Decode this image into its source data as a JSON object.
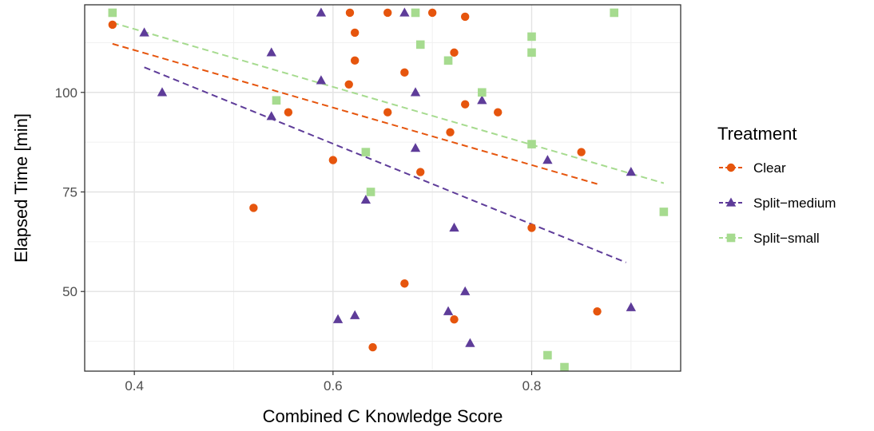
{
  "chart_data": {
    "type": "scatter",
    "xlabel": "Combined C Knowledge Score",
    "ylabel": "Elapsed Time [min]",
    "xlim": [
      0.35,
      0.95
    ],
    "ylim": [
      30,
      122
    ],
    "x_ticks": [
      0.4,
      0.6,
      0.8
    ],
    "x_tick_labels": [
      "0.4",
      "0.6",
      "0.8"
    ],
    "y_ticks": [
      50,
      75,
      100
    ],
    "y_tick_labels": [
      "50",
      "75",
      "100"
    ],
    "grid": true,
    "legend": {
      "title": "Treatment",
      "position": "right"
    },
    "series": [
      {
        "name": "Clear",
        "color": "#E6550D",
        "marker": "circle",
        "points": [
          [
            0.378,
            117
          ],
          [
            0.52,
            71
          ],
          [
            0.555,
            95
          ],
          [
            0.6,
            83
          ],
          [
            0.616,
            102
          ],
          [
            0.617,
            120
          ],
          [
            0.622,
            115
          ],
          [
            0.622,
            108
          ],
          [
            0.64,
            36
          ],
          [
            0.655,
            95
          ],
          [
            0.655,
            120
          ],
          [
            0.672,
            105
          ],
          [
            0.672,
            52
          ],
          [
            0.688,
            80
          ],
          [
            0.7,
            120
          ],
          [
            0.718,
            90
          ],
          [
            0.722,
            110
          ],
          [
            0.722,
            43
          ],
          [
            0.733,
            97
          ],
          [
            0.733,
            119
          ],
          [
            0.766,
            95
          ],
          [
            0.8,
            66
          ],
          [
            0.85,
            85
          ],
          [
            0.866,
            45
          ]
        ],
        "trend": [
          [
            0.378,
            112.2
          ],
          [
            0.866,
            77.0
          ]
        ]
      },
      {
        "name": "Split−medium",
        "color": "#5E3C99",
        "marker": "triangle",
        "points": [
          [
            0.41,
            115
          ],
          [
            0.428,
            100
          ],
          [
            0.538,
            110
          ],
          [
            0.538,
            94
          ],
          [
            0.588,
            103
          ],
          [
            0.588,
            120
          ],
          [
            0.605,
            43
          ],
          [
            0.622,
            44
          ],
          [
            0.633,
            73
          ],
          [
            0.672,
            120
          ],
          [
            0.683,
            86
          ],
          [
            0.683,
            100
          ],
          [
            0.716,
            45
          ],
          [
            0.722,
            66
          ],
          [
            0.733,
            50
          ],
          [
            0.738,
            37
          ],
          [
            0.75,
            98
          ],
          [
            0.816,
            83
          ],
          [
            0.9,
            80
          ],
          [
            0.9,
            46
          ]
        ],
        "trend": [
          [
            0.41,
            106.3
          ],
          [
            0.895,
            57.3
          ]
        ]
      },
      {
        "name": "Split−small",
        "color": "#A6DB8F",
        "marker": "square",
        "points": [
          [
            0.378,
            120
          ],
          [
            0.543,
            98
          ],
          [
            0.633,
            85
          ],
          [
            0.638,
            75
          ],
          [
            0.683,
            120
          ],
          [
            0.688,
            112
          ],
          [
            0.716,
            108
          ],
          [
            0.75,
            100
          ],
          [
            0.8,
            114
          ],
          [
            0.8,
            110
          ],
          [
            0.8,
            87
          ],
          [
            0.816,
            34
          ],
          [
            0.833,
            31
          ],
          [
            0.883,
            120
          ],
          [
            0.933,
            70
          ]
        ],
        "trend": [
          [
            0.378,
            117.5
          ],
          [
            0.933,
            77.2
          ]
        ]
      }
    ]
  }
}
